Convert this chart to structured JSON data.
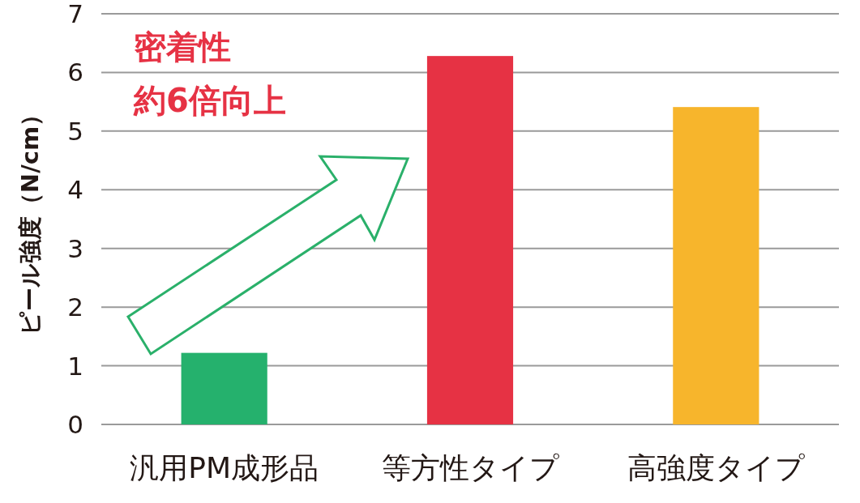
{
  "chart_data": {
    "type": "bar",
    "ylabel": "ピール強度（N/cm）",
    "categories": [
      "汎用PM成形品",
      "等方性タイプ",
      "高強度タイプ"
    ],
    "values": [
      1.22,
      6.28,
      5.41
    ],
    "colors": [
      "#25b16d",
      "#e63244",
      "#f7b52c"
    ],
    "ylim": [
      0,
      7
    ],
    "yticks": [
      0,
      1,
      2,
      3,
      4,
      5,
      6,
      7
    ],
    "grid": "y",
    "annotations": [
      "密着性",
      "約6倍向上"
    ]
  }
}
